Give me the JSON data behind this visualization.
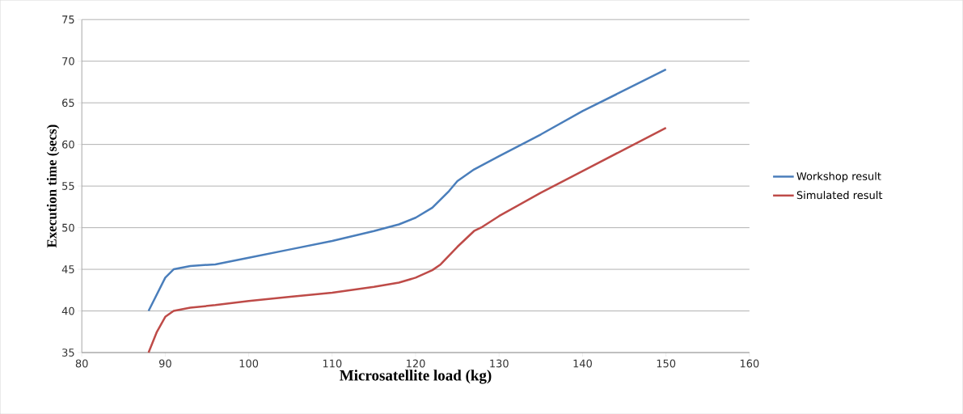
{
  "chart_data": {
    "type": "line",
    "xlabel": "Microsatellite load (kg)",
    "ylabel": "Execution time (secs)",
    "xlim": [
      80,
      160
    ],
    "xticks": [
      80,
      90,
      100,
      110,
      120,
      130,
      140,
      150,
      160
    ],
    "ylim": [
      35,
      75
    ],
    "yticks": [
      35,
      40,
      45,
      50,
      55,
      60,
      65,
      70,
      75
    ],
    "grid": "y",
    "legend": "right",
    "marker": "none",
    "line_style": "solid",
    "series": [
      {
        "name": "Workshop result",
        "color": "#4a7ebb",
        "x": [
          88,
          90,
          91,
          93,
          96,
          100,
          105,
          110,
          115,
          118,
          120,
          122,
          124,
          125,
          127,
          130,
          135,
          140,
          145,
          150
        ],
        "values": [
          40,
          44,
          45,
          45.4,
          45.6,
          46.4,
          47.4,
          48.4,
          49.6,
          50.4,
          51.2,
          52.4,
          54.4,
          55.6,
          57,
          58.6,
          61.2,
          64,
          66.5,
          69
        ]
      },
      {
        "name": "Simulated result",
        "color": "#be4b48",
        "x": [
          88,
          89,
          90,
          91,
          93,
          96,
          100,
          105,
          110,
          115,
          118,
          120,
          122,
          123,
          125,
          127,
          128,
          130,
          135,
          140,
          145,
          150
        ],
        "values": [
          35,
          37.5,
          39.3,
          40,
          40.4,
          40.7,
          41.2,
          41.7,
          42.2,
          42.9,
          43.4,
          44,
          44.9,
          45.6,
          47.7,
          49.6,
          50.1,
          51.4,
          54.2,
          56.8,
          59.4,
          62
        ]
      }
    ]
  }
}
